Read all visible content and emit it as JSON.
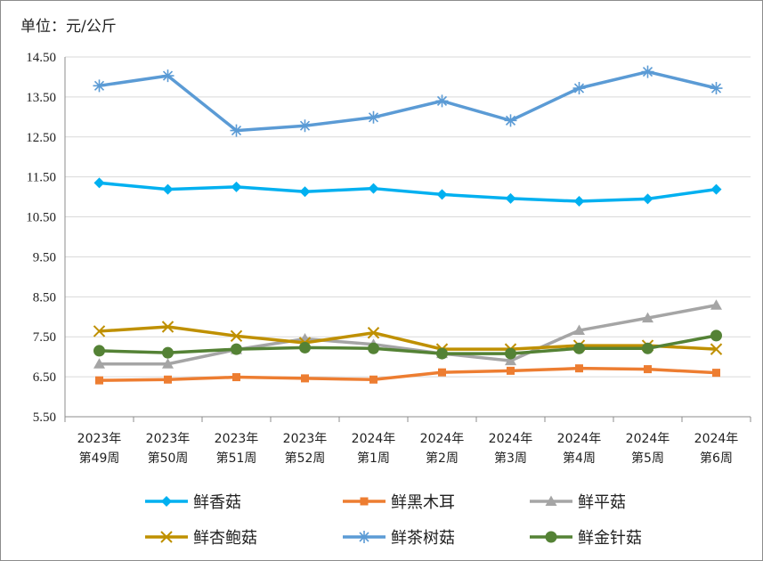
{
  "unit_label": "单位：元/公斤",
  "chart_data": {
    "type": "line",
    "title": "",
    "xlabel": "",
    "ylabel": "单位：元/公斤",
    "ylim": [
      5.5,
      14.5
    ],
    "yticks": [
      "5.50",
      "6.50",
      "7.50",
      "8.50",
      "9.50",
      "10.50",
      "11.50",
      "12.50",
      "13.50",
      "14.50"
    ],
    "grid": "horizontal",
    "legend_position": "bottom",
    "categories": [
      [
        "2023年",
        "第49周"
      ],
      [
        "2023年",
        "第50周"
      ],
      [
        "2023年",
        "第51周"
      ],
      [
        "2023年",
        "第52周"
      ],
      [
        "2024年",
        "第1周"
      ],
      [
        "2024年",
        "第2周"
      ],
      [
        "2024年",
        "第3周"
      ],
      [
        "2024年",
        "第4周"
      ],
      [
        "2024年",
        "第5周"
      ],
      [
        "2024年",
        "第6周"
      ]
    ],
    "series": [
      {
        "name": "鲜香菇",
        "color": "#00b0f0",
        "marker": "diamond",
        "values": [
          11.35,
          11.19,
          11.25,
          11.13,
          11.21,
          11.06,
          10.96,
          10.89,
          10.95,
          11.19
        ]
      },
      {
        "name": "鲜黑木耳",
        "color": "#ed7d31",
        "marker": "square",
        "values": [
          6.41,
          6.43,
          6.49,
          6.46,
          6.43,
          6.61,
          6.65,
          6.71,
          6.69,
          6.6
        ]
      },
      {
        "name": "鲜平菇",
        "color": "#a5a5a5",
        "marker": "triangle",
        "values": [
          6.82,
          6.82,
          7.18,
          7.45,
          7.31,
          7.08,
          6.9,
          7.66,
          7.97,
          8.29
        ]
      },
      {
        "name": "鲜杏鲍菇",
        "color": "#bf9000",
        "marker": "x",
        "values": [
          7.64,
          7.75,
          7.52,
          7.35,
          7.6,
          7.19,
          7.19,
          7.28,
          7.28,
          7.19
        ]
      },
      {
        "name": "鲜茶树菇",
        "color": "#5b9bd5",
        "marker": "star",
        "values": [
          13.78,
          14.03,
          12.66,
          12.78,
          12.99,
          13.4,
          12.91,
          13.72,
          14.13,
          13.72
        ]
      },
      {
        "name": "鲜金针菇",
        "color": "#548235",
        "marker": "circle",
        "values": [
          7.15,
          7.1,
          7.19,
          7.23,
          7.21,
          7.08,
          7.08,
          7.21,
          7.21,
          7.53
        ]
      }
    ]
  }
}
